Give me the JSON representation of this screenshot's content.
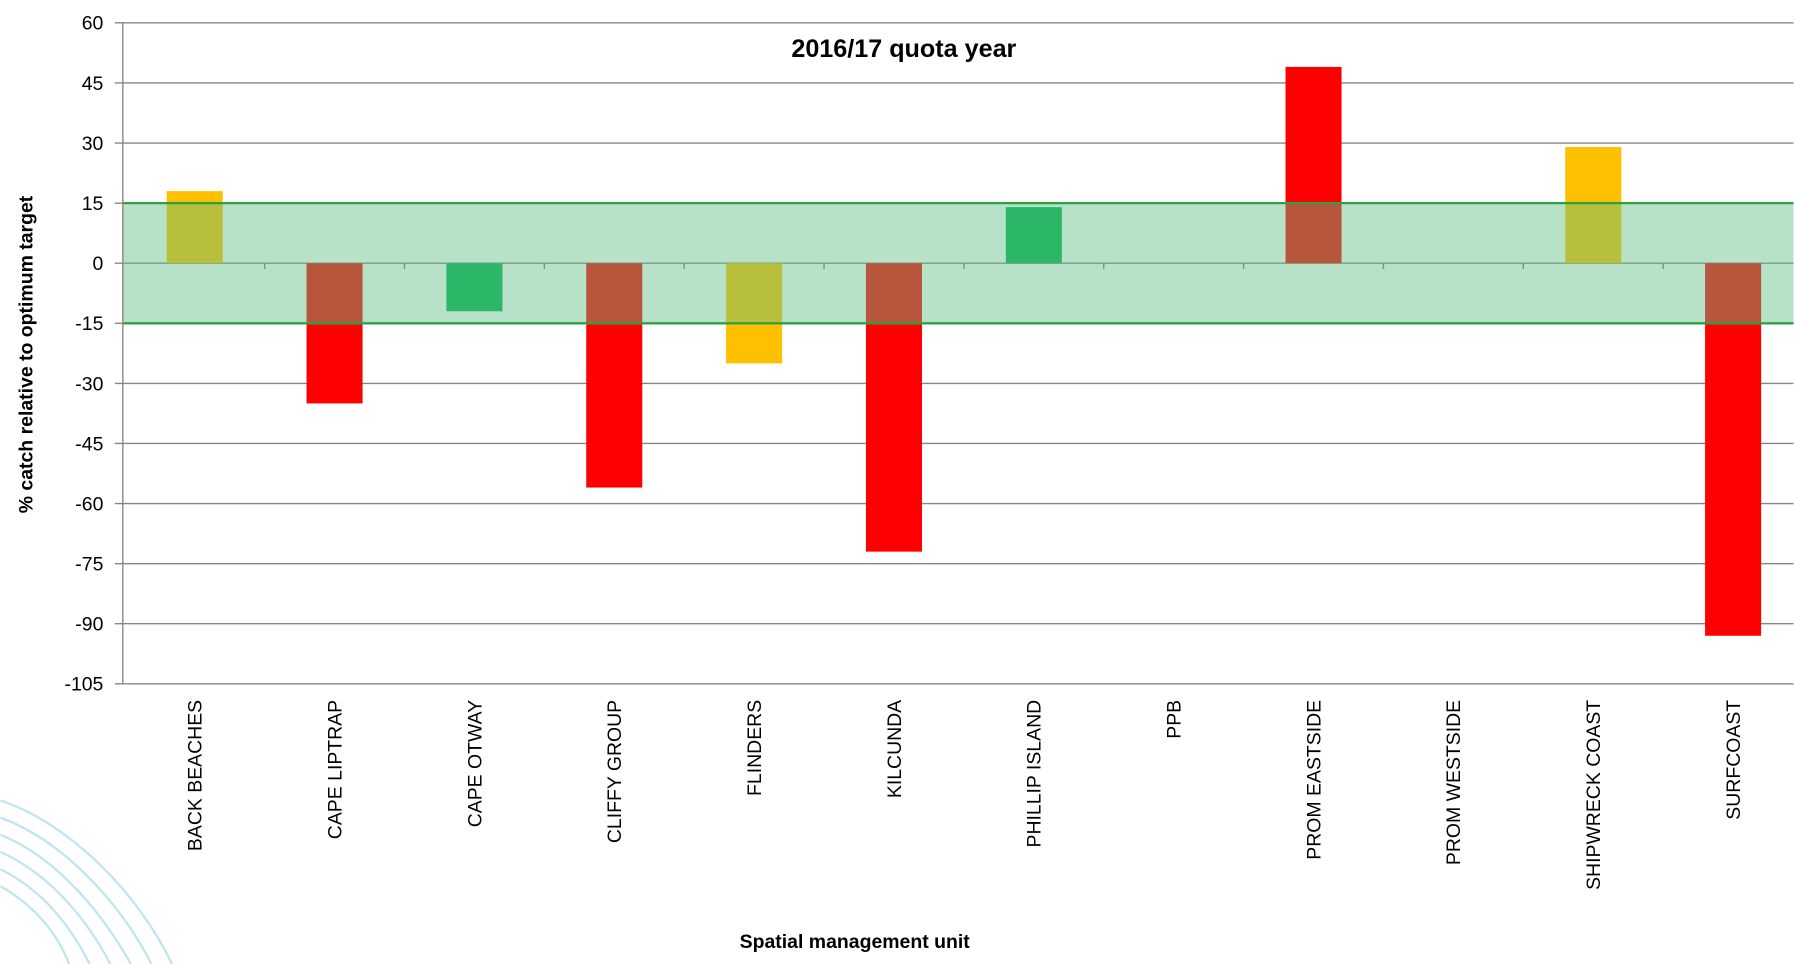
{
  "chart_data": {
    "type": "bar",
    "title": "2016/17 quota year",
    "x_label": "Spatial management unit",
    "y_label": "% catch relative to optimum target",
    "categories": [
      "BACK BEACHES",
      "CAPE LIPTRAP",
      "CAPE OTWAY",
      "CLIFFY GROUP",
      "FLINDERS",
      "KILCUNDA",
      "PHILLIP ISLAND",
      "PPB",
      "PROM EASTSIDE",
      "PROM WESTSIDE",
      "SHIPWRECK COAST",
      "SURFCOAST"
    ],
    "values": [
      18,
      -35,
      -12,
      -56,
      -25,
      -72,
      14,
      0,
      49,
      0,
      29,
      -93
    ],
    "colors": [
      "#ffc000",
      "#ff0000",
      "#00b050",
      "#ff0000",
      "#ffc000",
      "#ff0000",
      "#00b050",
      "#00b050",
      "#ff0000",
      "#00b050",
      "#ffc000",
      "#ff0000"
    ],
    "ylim": [
      -105,
      60
    ],
    "yticks": [
      -105,
      -90,
      -75,
      -60,
      -45,
      -30,
      -15,
      0,
      15,
      30,
      45,
      60
    ],
    "grid": true,
    "target_band": {
      "range": [
        -15,
        15
      ],
      "color": "#5fbf85",
      "edge_color": "#2ea043"
    }
  }
}
